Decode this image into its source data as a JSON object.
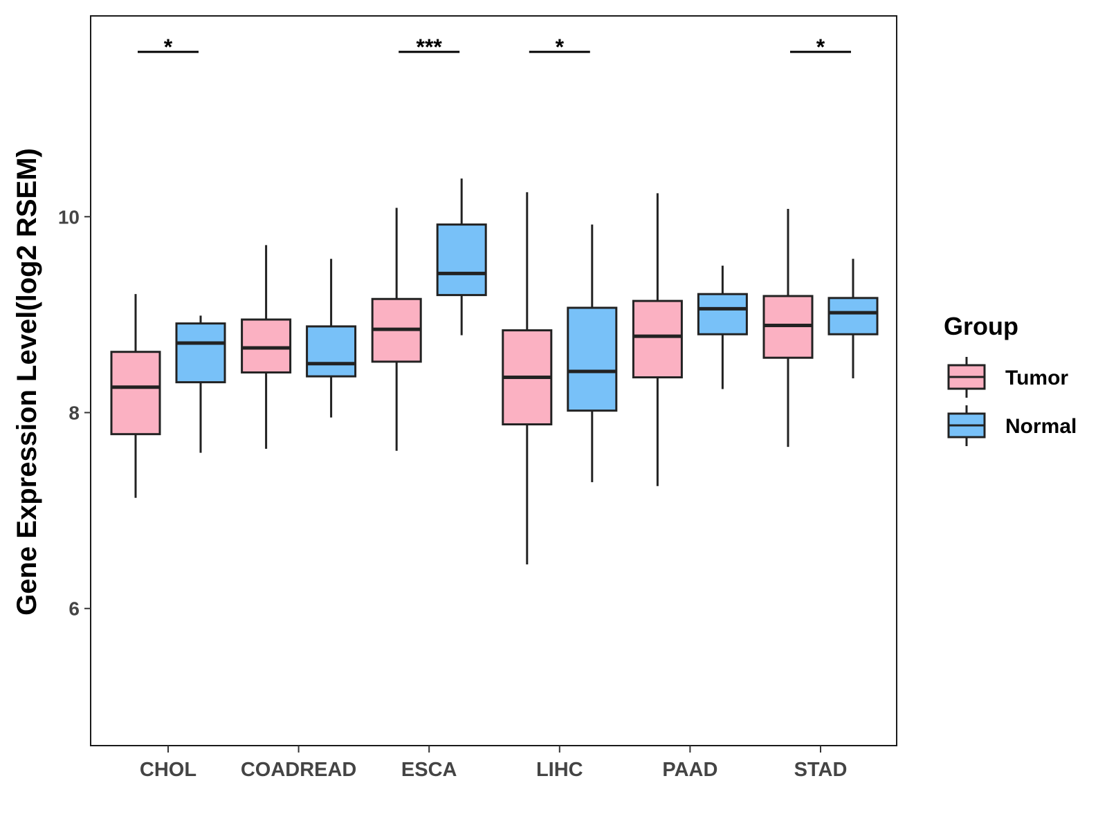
{
  "chart_data": {
    "type": "boxplot",
    "ylabel": "Gene Expression Level(log2 RSEM)",
    "xlabel": "",
    "ylim": [
      4.6,
      12.05
    ],
    "y_ticks": [
      6,
      8,
      10
    ],
    "categories": [
      "CHOL",
      "COADREAD",
      "ESCA",
      "LIHC",
      "PAAD",
      "STAD"
    ],
    "legend": {
      "title": "Group",
      "position": "right",
      "entries": [
        {
          "name": "Tumor",
          "color": "#FBB1C2"
        },
        {
          "name": "Normal",
          "color": "#78C1F8"
        }
      ]
    },
    "series": [
      {
        "name": "Tumor",
        "color": "#FBB1C2",
        "boxes": [
          {
            "min": 7.13,
            "q1": 7.78,
            "median": 8.26,
            "q3": 8.62,
            "max": 9.21
          },
          {
            "min": 7.63,
            "q1": 8.41,
            "median": 8.66,
            "q3": 8.95,
            "max": 9.71
          },
          {
            "min": 7.61,
            "q1": 8.52,
            "median": 8.85,
            "q3": 9.16,
            "max": 10.09
          },
          {
            "min": 6.45,
            "q1": 7.88,
            "median": 8.36,
            "q3": 8.84,
            "max": 10.25
          },
          {
            "min": 7.25,
            "q1": 8.36,
            "median": 8.78,
            "q3": 9.14,
            "max": 10.24
          },
          {
            "min": 7.65,
            "q1": 8.56,
            "median": 8.89,
            "q3": 9.19,
            "max": 10.08
          }
        ]
      },
      {
        "name": "Normal",
        "color": "#78C1F8",
        "boxes": [
          {
            "min": 7.59,
            "q1": 8.31,
            "median": 8.71,
            "q3": 8.91,
            "max": 8.99
          },
          {
            "min": 7.95,
            "q1": 8.37,
            "median": 8.5,
            "q3": 8.88,
            "max": 9.57
          },
          {
            "min": 8.79,
            "q1": 9.2,
            "median": 9.42,
            "q3": 9.92,
            "max": 10.39
          },
          {
            "min": 7.29,
            "q1": 8.02,
            "median": 8.42,
            "q3": 9.07,
            "max": 9.92
          },
          {
            "min": 8.24,
            "q1": 8.8,
            "median": 9.06,
            "q3": 9.21,
            "max": 9.5
          },
          {
            "min": 8.35,
            "q1": 8.8,
            "median": 9.02,
            "q3": 9.17,
            "max": 9.57
          }
        ]
      }
    ],
    "significance": [
      {
        "category": "CHOL",
        "label": "*"
      },
      {
        "category": "ESCA",
        "label": "***"
      },
      {
        "category": "LIHC",
        "label": "*"
      },
      {
        "category": "STAD",
        "label": "*"
      }
    ]
  }
}
